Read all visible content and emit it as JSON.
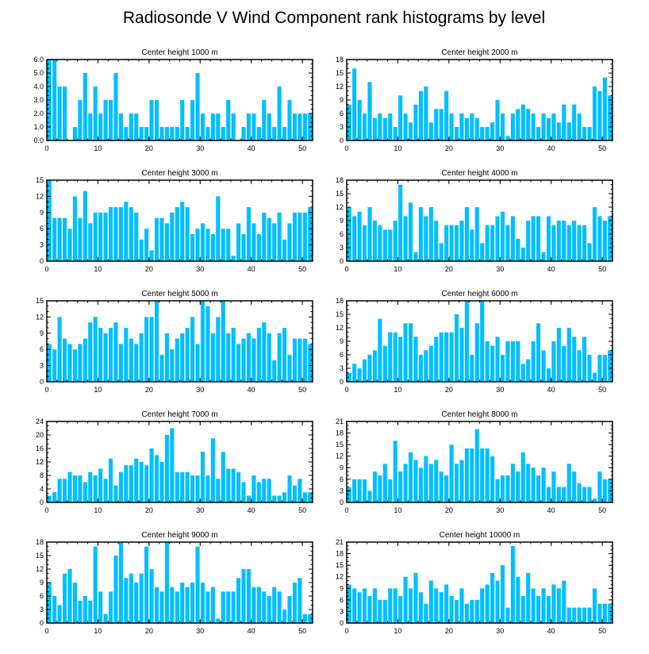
{
  "figure_title": "Radiosonde V Wind Component rank histograms by level",
  "bar_color": "#00bfff",
  "chart_data": [
    {
      "type": "bar",
      "title": "Center height 1000 m",
      "xlim": [
        0,
        52
      ],
      "xticks": [
        0,
        10,
        20,
        30,
        40,
        50
      ],
      "ylim": [
        0,
        6
      ],
      "yticks": [
        0,
        1,
        2,
        3,
        4,
        5,
        6
      ],
      "ytick_labels": [
        "0.0",
        "1.0",
        "2.0",
        "3.0",
        "4.0",
        "5.0",
        "6.0"
      ],
      "x": [
        0,
        1,
        2,
        3,
        4,
        5,
        6,
        7,
        8,
        9,
        10,
        11,
        12,
        13,
        14,
        15,
        16,
        17,
        18,
        19,
        20,
        21,
        22,
        23,
        24,
        25,
        26,
        27,
        28,
        29,
        30,
        31,
        32,
        33,
        34,
        35,
        36,
        37,
        38,
        39,
        40,
        41,
        42,
        43,
        44,
        45,
        46,
        47,
        48,
        49,
        50,
        51
      ],
      "values": [
        6,
        6,
        4,
        4,
        0,
        1,
        3,
        5,
        2,
        4,
        2,
        3,
        3,
        5,
        2,
        1,
        2,
        2,
        1,
        1,
        3,
        3,
        1,
        1,
        1,
        1,
        3,
        1,
        3,
        5,
        2,
        1,
        2,
        2,
        1,
        3,
        2,
        0,
        1,
        2,
        2,
        1,
        3,
        2,
        1,
        4,
        1,
        3,
        2,
        2,
        2,
        2
      ]
    },
    {
      "type": "bar",
      "title": "Center height 2000 m",
      "xlim": [
        0,
        52
      ],
      "xticks": [
        0,
        10,
        20,
        30,
        40,
        50
      ],
      "ylim": [
        0,
        18
      ],
      "yticks": [
        0,
        3,
        6,
        9,
        12,
        15,
        18
      ],
      "ytick_labels": [
        "0",
        "3",
        "6",
        "9",
        "12",
        "15",
        "18"
      ],
      "x": [
        0,
        1,
        2,
        3,
        4,
        5,
        6,
        7,
        8,
        9,
        10,
        11,
        12,
        13,
        14,
        15,
        16,
        17,
        18,
        19,
        20,
        21,
        22,
        23,
        24,
        25,
        26,
        27,
        28,
        29,
        30,
        31,
        32,
        33,
        34,
        35,
        36,
        37,
        38,
        39,
        40,
        41,
        42,
        43,
        44,
        45,
        46,
        47,
        48,
        49,
        50,
        51
      ],
      "values": [
        8,
        16,
        9,
        6,
        13,
        5,
        6,
        5,
        6,
        3,
        10,
        6,
        4,
        8,
        11,
        12,
        4,
        7,
        7,
        11,
        6,
        3,
        6,
        5,
        6,
        5,
        3,
        3,
        4,
        9,
        6,
        1,
        6,
        7,
        8,
        7,
        6,
        3,
        6,
        5,
        6,
        4,
        8,
        4,
        8,
        6,
        3,
        3,
        12,
        11,
        14,
        10
      ]
    },
    {
      "type": "bar",
      "title": "Center height 3000 m",
      "xlim": [
        0,
        52
      ],
      "xticks": [
        0,
        10,
        20,
        30,
        40,
        50
      ],
      "ylim": [
        0,
        15
      ],
      "yticks": [
        0,
        3,
        6,
        9,
        12,
        15
      ],
      "ytick_labels": [
        "0",
        "3",
        "6",
        "9",
        "12",
        "15"
      ],
      "x": [
        0,
        1,
        2,
        3,
        4,
        5,
        6,
        7,
        8,
        9,
        10,
        11,
        12,
        13,
        14,
        15,
        16,
        17,
        18,
        19,
        20,
        21,
        22,
        23,
        24,
        25,
        26,
        27,
        28,
        29,
        30,
        31,
        32,
        33,
        34,
        35,
        36,
        37,
        38,
        39,
        40,
        41,
        42,
        43,
        44,
        45,
        46,
        47,
        48,
        49,
        50,
        51
      ],
      "values": [
        15,
        8,
        8,
        8,
        6,
        12,
        8,
        13,
        7,
        9,
        9,
        9,
        10,
        10,
        10,
        11,
        10,
        9,
        4,
        6,
        2,
        8,
        8,
        7,
        9,
        10,
        11,
        10,
        5,
        6,
        7,
        6,
        5,
        12,
        6,
        6,
        1,
        7,
        5,
        10,
        7,
        5,
        9,
        8,
        7,
        9,
        4,
        7,
        9,
        9,
        9,
        10
      ]
    },
    {
      "type": "bar",
      "title": "Center height 4000 m",
      "xlim": [
        0,
        52
      ],
      "xticks": [
        0,
        10,
        20,
        30,
        40,
        50
      ],
      "ylim": [
        0,
        18
      ],
      "yticks": [
        0,
        3,
        6,
        9,
        12,
        15,
        18
      ],
      "ytick_labels": [
        "0",
        "3",
        "6",
        "9",
        "12",
        "15",
        "18"
      ],
      "x": [
        0,
        1,
        2,
        3,
        4,
        5,
        6,
        7,
        8,
        9,
        10,
        11,
        12,
        13,
        14,
        15,
        16,
        17,
        18,
        19,
        20,
        21,
        22,
        23,
        24,
        25,
        26,
        27,
        28,
        29,
        30,
        31,
        32,
        33,
        34,
        35,
        36,
        37,
        38,
        39,
        40,
        41,
        42,
        43,
        44,
        45,
        46,
        47,
        48,
        49,
        50,
        51
      ],
      "values": [
        12,
        10,
        11,
        8,
        12,
        9,
        8,
        7,
        7,
        9,
        17,
        10,
        13,
        2,
        12,
        10,
        12,
        9,
        4,
        8,
        8,
        8,
        9,
        12,
        7,
        12,
        4,
        8,
        8,
        10,
        11,
        8,
        10,
        5,
        3,
        9,
        10,
        10,
        2,
        10,
        8,
        9,
        9,
        8,
        9,
        8,
        8,
        4,
        12,
        10,
        9,
        10
      ]
    },
    {
      "type": "bar",
      "title": "Center height 5000 m",
      "xlim": [
        0,
        52
      ],
      "xticks": [
        0,
        10,
        20,
        30,
        40,
        50
      ],
      "ylim": [
        0,
        15
      ],
      "yticks": [
        0,
        3,
        6,
        9,
        12,
        15
      ],
      "ytick_labels": [
        "0",
        "3",
        "6",
        "9",
        "12",
        "15"
      ],
      "x": [
        0,
        1,
        2,
        3,
        4,
        5,
        6,
        7,
        8,
        9,
        10,
        11,
        12,
        13,
        14,
        15,
        16,
        17,
        18,
        19,
        20,
        21,
        22,
        23,
        24,
        25,
        26,
        27,
        28,
        29,
        30,
        31,
        32,
        33,
        34,
        35,
        36,
        37,
        38,
        39,
        40,
        41,
        42,
        43,
        44,
        45,
        46,
        47,
        48,
        49,
        50,
        51
      ],
      "values": [
        7,
        6,
        12,
        8,
        7,
        6,
        7,
        8,
        11,
        12,
        10,
        9,
        10,
        11,
        7,
        10,
        8,
        7,
        9,
        12,
        12,
        15,
        5,
        9,
        6,
        8,
        9,
        10,
        12,
        7,
        15,
        14,
        9,
        12,
        15,
        9,
        10,
        7,
        8,
        9,
        8,
        10,
        11,
        9,
        4,
        9,
        10,
        5,
        8,
        8,
        8,
        7
      ]
    },
    {
      "type": "bar",
      "title": "Center height 6000 m",
      "xlim": [
        0,
        52
      ],
      "xticks": [
        0,
        10,
        20,
        30,
        40,
        50
      ],
      "ylim": [
        0,
        18
      ],
      "yticks": [
        0,
        3,
        6,
        9,
        12,
        15,
        18
      ],
      "ytick_labels": [
        "0",
        "3",
        "6",
        "9",
        "12",
        "15",
        "18"
      ],
      "x": [
        0,
        1,
        2,
        3,
        4,
        5,
        6,
        7,
        8,
        9,
        10,
        11,
        12,
        13,
        14,
        15,
        16,
        17,
        18,
        19,
        20,
        21,
        22,
        23,
        24,
        25,
        26,
        27,
        28,
        29,
        30,
        31,
        32,
        33,
        34,
        35,
        36,
        37,
        38,
        39,
        40,
        41,
        42,
        43,
        44,
        45,
        46,
        47,
        48,
        49,
        50,
        51
      ],
      "values": [
        2,
        4,
        3,
        5,
        6,
        7,
        14,
        8,
        11,
        11,
        10,
        13,
        13,
        10,
        6,
        7,
        8,
        10,
        11,
        11,
        11,
        15,
        12,
        18,
        6,
        13,
        18,
        9,
        8,
        10,
        6,
        9,
        9,
        9,
        4,
        5,
        9,
        13,
        7,
        3,
        9,
        12,
        8,
        12,
        10,
        7,
        10,
        6,
        2,
        6,
        6,
        7
      ]
    },
    {
      "type": "bar",
      "title": "Center height 7000 m",
      "xlim": [
        0,
        52
      ],
      "xticks": [
        0,
        10,
        20,
        30,
        40,
        50
      ],
      "ylim": [
        0,
        24
      ],
      "yticks": [
        0,
        4,
        8,
        12,
        16,
        20,
        24
      ],
      "ytick_labels": [
        "0",
        "4",
        "8",
        "12",
        "16",
        "20",
        "24"
      ],
      "x": [
        0,
        1,
        2,
        3,
        4,
        5,
        6,
        7,
        8,
        9,
        10,
        11,
        12,
        13,
        14,
        15,
        16,
        17,
        18,
        19,
        20,
        21,
        22,
        23,
        24,
        25,
        26,
        27,
        28,
        29,
        30,
        31,
        32,
        33,
        34,
        35,
        36,
        37,
        38,
        39,
        40,
        41,
        42,
        43,
        44,
        45,
        46,
        47,
        48,
        49,
        50,
        51
      ],
      "values": [
        2,
        3,
        7,
        7,
        9,
        8,
        8,
        6,
        9,
        8,
        10,
        7,
        13,
        5,
        9,
        11,
        11,
        13,
        12,
        11,
        16,
        14,
        12,
        20,
        22,
        9,
        9,
        9,
        8,
        8,
        15,
        8,
        19,
        7,
        15,
        10,
        10,
        9,
        6,
        2,
        8,
        6,
        7,
        7,
        2,
        2,
        3,
        8,
        5,
        7,
        3,
        3
      ]
    },
    {
      "type": "bar",
      "title": "Center height 8000 m",
      "xlim": [
        0,
        52
      ],
      "xticks": [
        0,
        10,
        20,
        30,
        40,
        50
      ],
      "ylim": [
        0,
        21
      ],
      "yticks": [
        0,
        3,
        6,
        9,
        12,
        15,
        18,
        21
      ],
      "ytick_labels": [
        "0",
        "3",
        "6",
        "9",
        "12",
        "15",
        "18",
        "21"
      ],
      "x": [
        0,
        1,
        2,
        3,
        4,
        5,
        6,
        7,
        8,
        9,
        10,
        11,
        12,
        13,
        14,
        15,
        16,
        17,
        18,
        19,
        20,
        21,
        22,
        23,
        24,
        25,
        26,
        27,
        28,
        29,
        30,
        31,
        32,
        33,
        34,
        35,
        36,
        37,
        38,
        39,
        40,
        41,
        42,
        43,
        44,
        45,
        46,
        47,
        48,
        49,
        50,
        51
      ],
      "values": [
        4,
        6,
        6,
        6,
        3,
        8,
        7,
        10,
        6,
        16,
        8,
        10,
        13,
        11,
        9,
        12,
        10,
        11,
        8,
        7,
        15,
        10,
        11,
        14,
        14,
        19,
        14,
        14,
        12,
        6,
        7,
        7,
        10,
        8,
        13,
        10,
        9,
        7,
        9,
        4,
        8,
        4,
        4,
        10,
        8,
        5,
        4,
        4,
        1,
        8,
        6,
        6
      ]
    },
    {
      "type": "bar",
      "title": "Center height 9000 m",
      "xlim": [
        0,
        52
      ],
      "xticks": [
        0,
        10,
        20,
        30,
        40,
        50
      ],
      "ylim": [
        0,
        18
      ],
      "yticks": [
        0,
        3,
        6,
        9,
        12,
        15,
        18
      ],
      "ytick_labels": [
        "0",
        "3",
        "6",
        "9",
        "12",
        "15",
        "18"
      ],
      "x": [
        0,
        1,
        2,
        3,
        4,
        5,
        6,
        7,
        8,
        9,
        10,
        11,
        12,
        13,
        14,
        15,
        16,
        17,
        18,
        19,
        20,
        21,
        22,
        23,
        24,
        25,
        26,
        27,
        28,
        29,
        30,
        31,
        32,
        33,
        34,
        35,
        36,
        37,
        38,
        39,
        40,
        41,
        42,
        43,
        44,
        45,
        46,
        47,
        48,
        49,
        50,
        51
      ],
      "values": [
        9,
        6,
        4,
        11,
        12,
        9,
        5,
        6,
        5,
        17,
        7,
        2,
        7,
        15,
        18,
        10,
        11,
        9,
        11,
        17,
        12,
        8,
        7,
        18,
        8,
        7,
        9,
        8,
        9,
        17,
        9,
        7,
        8,
        1,
        7,
        7,
        7,
        10,
        12,
        12,
        8,
        8,
        7,
        6,
        8,
        7,
        3,
        6,
        9,
        10,
        2,
        2
      ]
    },
    {
      "type": "bar",
      "title": "Center height 10000 m",
      "xlim": [
        0,
        52
      ],
      "xticks": [
        0,
        10,
        20,
        30,
        40,
        50
      ],
      "ylim": [
        0,
        21
      ],
      "yticks": [
        0,
        3,
        6,
        9,
        12,
        15,
        18,
        21
      ],
      "ytick_labels": [
        "0",
        "3",
        "6",
        "9",
        "12",
        "15",
        "18",
        "21"
      ],
      "x": [
        0,
        1,
        2,
        3,
        4,
        5,
        6,
        7,
        8,
        9,
        10,
        11,
        12,
        13,
        14,
        15,
        16,
        17,
        18,
        19,
        20,
        21,
        22,
        23,
        24,
        25,
        26,
        27,
        28,
        29,
        30,
        31,
        32,
        33,
        34,
        35,
        36,
        37,
        38,
        39,
        40,
        41,
        42,
        43,
        44,
        45,
        46,
        47,
        48,
        49,
        50,
        51
      ],
      "values": [
        10,
        9,
        8,
        9,
        7,
        9,
        6,
        6,
        9,
        9,
        7,
        12,
        9,
        13,
        8,
        5,
        11,
        9,
        8,
        10,
        7,
        6,
        9,
        5,
        6,
        6,
        9,
        10,
        13,
        11,
        15,
        4,
        20,
        12,
        7,
        13,
        9,
        7,
        9,
        7,
        10,
        9,
        11,
        4,
        4,
        4,
        4,
        4,
        9,
        5,
        5,
        5
      ]
    }
  ]
}
